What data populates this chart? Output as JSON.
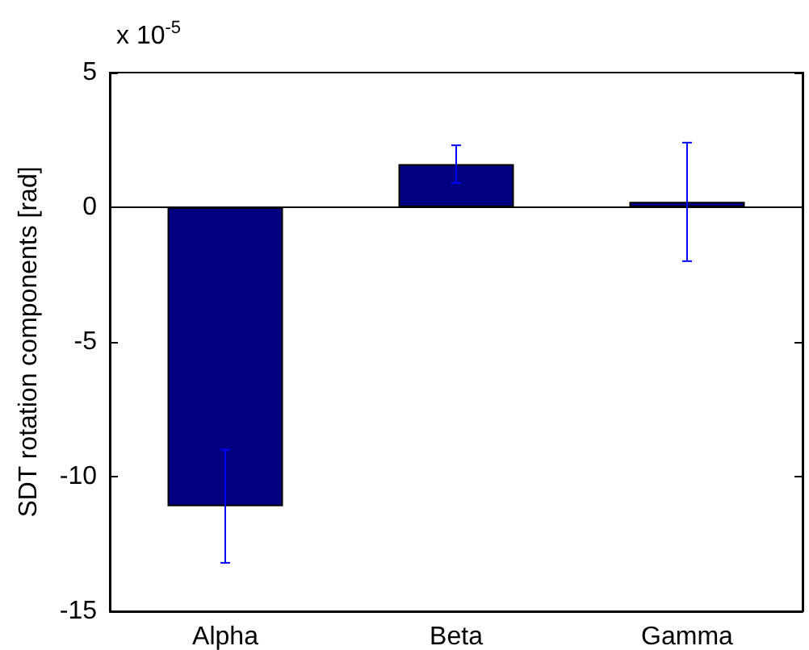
{
  "chart_data": {
    "type": "bar",
    "ylabel": "SDT rotation components [rad]",
    "annotations": [
      "x 10$^{-5}$"
    ],
    "categories": [
      "Alpha",
      "Beta",
      "Gamma"
    ],
    "series": [
      {
        "color": "#000080",
        "values": [
          -11.1,
          1.6,
          0.2
        ],
        "errors": [
          2.1,
          0.7,
          2.2
        ]
      }
    ],
    "ylim": [
      -15,
      5
    ],
    "yticks": [
      -15,
      -10,
      -5,
      0,
      5
    ]
  }
}
